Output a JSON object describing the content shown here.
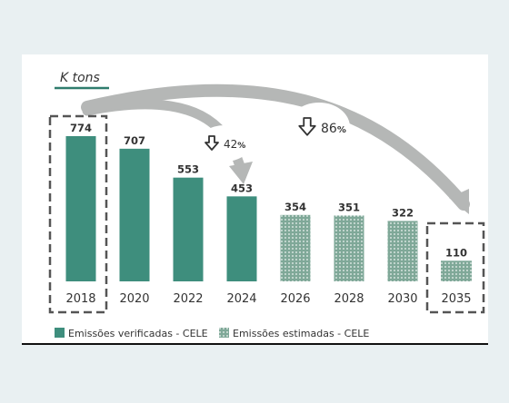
{
  "chart_data": {
    "type": "bar",
    "unit_label": "K tons",
    "categories": [
      "2018",
      "2020",
      "2022",
      "2024",
      "2026",
      "2028",
      "2030",
      "2035"
    ],
    "series": [
      {
        "name": "Emissões verificadas - CELE",
        "values": [
          774,
          707,
          553,
          453,
          null,
          null,
          null,
          null
        ]
      },
      {
        "name": "Emissões estimadas - CELE",
        "values": [
          null,
          null,
          null,
          null,
          354,
          351,
          322,
          110
        ]
      }
    ],
    "value_labels": [
      "774",
      "707",
      "553",
      "453",
      "354",
      "351",
      "322",
      "110"
    ],
    "highlighted_categories": [
      "2018",
      "2035"
    ],
    "ylim": [
      0,
      800
    ],
    "grid": false,
    "legend_position": "bottom-left",
    "annotations": [
      {
        "from": "2018",
        "to": "2024",
        "text": "42",
        "unit": "%",
        "direction": "down"
      },
      {
        "from": "2018",
        "to": "2035",
        "text": "86",
        "unit": "%",
        "direction": "down"
      }
    ],
    "colors": {
      "verified": "#3e8e7d",
      "estimated": "#7fa898",
      "estimated_dots": "#eef4f1",
      "arrow": "#b5b7b6",
      "text": "#333333",
      "frame": "#555555",
      "underline": "#2f7c6d"
    }
  }
}
